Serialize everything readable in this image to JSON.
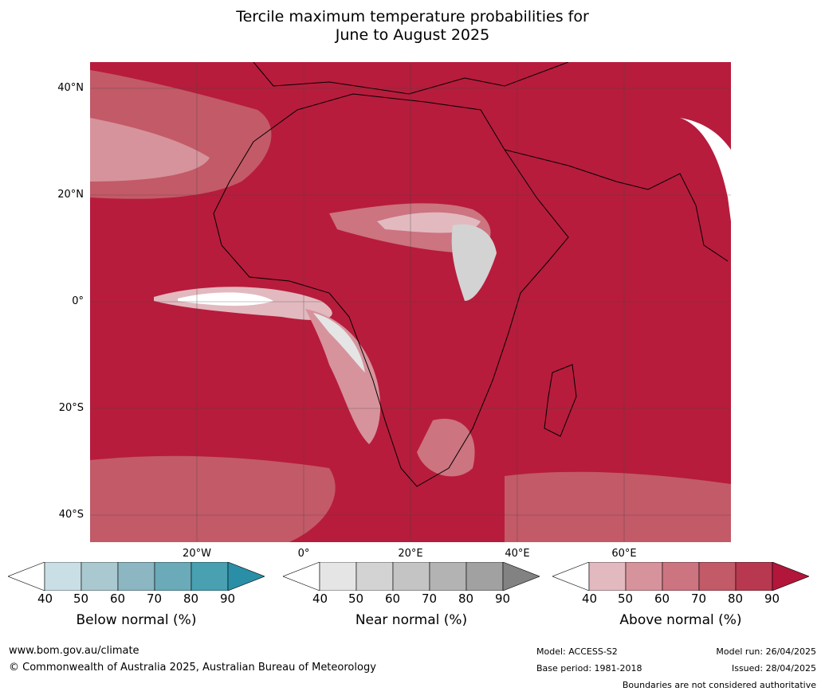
{
  "title_line1": "Tercile maximum temperature probabilities for",
  "title_line2": "June to August 2025",
  "latitude_labels": [
    "40°N",
    "20°N",
    "0°",
    "20°S",
    "40°S"
  ],
  "longitude_labels": [
    "20°W",
    "0°",
    "20°E",
    "40°E",
    "60°E"
  ],
  "colorbars": [
    {
      "label": "Below normal (%)",
      "ticks": [
        "40",
        "50",
        "60",
        "70",
        "80",
        "90"
      ],
      "colors": [
        "#ffffff",
        "#c9dfe5",
        "#a9c8cf",
        "#8bb6c2",
        "#6aaab9",
        "#48a0b1",
        "#2a8fa6"
      ]
    },
    {
      "label": "Near normal (%)",
      "ticks": [
        "40",
        "50",
        "60",
        "70",
        "80",
        "90"
      ],
      "colors": [
        "#ffffff",
        "#e5e5e5",
        "#d3d3d3",
        "#c4c4c4",
        "#b3b3b3",
        "#a1a1a1",
        "#828282"
      ]
    },
    {
      "label": "Above normal (%)",
      "ticks": [
        "40",
        "50",
        "60",
        "70",
        "80",
        "90"
      ],
      "colors": [
        "#ffffff",
        "#e2b9bf",
        "#d6939c",
        "#cc7480",
        "#c35a68",
        "#b8394f",
        "#b2163a"
      ]
    }
  ],
  "footer": {
    "website": "www.bom.gov.au/climate",
    "copyright": "© Commonwealth of Australia 2025, Australian Bureau of Meteorology",
    "model": "Model: ACCESS-S2",
    "base_period": "Base period: 1981-2018",
    "model_run": "Model run: 26/04/2025",
    "issued": "Issued: 28/04/2025",
    "disclaimer": "Boundaries are not considered authoritative"
  }
}
